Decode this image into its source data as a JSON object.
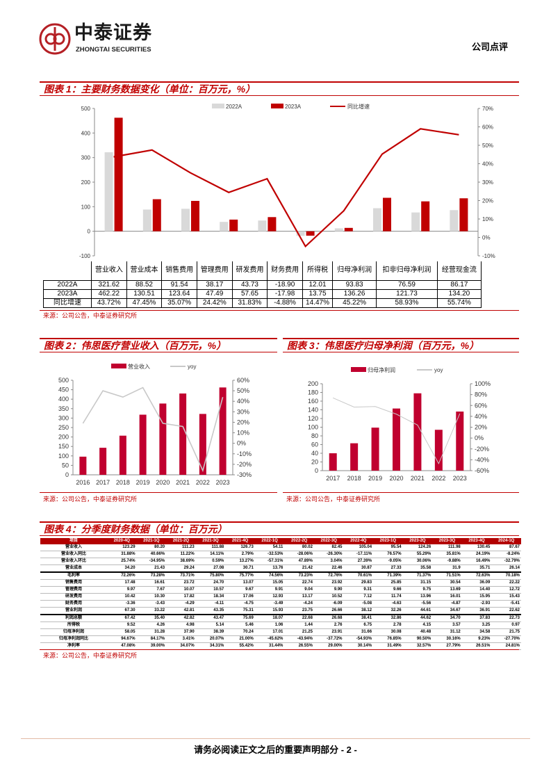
{
  "header": {
    "logo_cn": "中泰证券",
    "logo_en": "ZHONGTAI SECURITIES",
    "doc_type": "公司点评"
  },
  "fig1": {
    "title": "图表 1：主要财务数据变化（单位：百万元，%）",
    "source": "来源：公司公告，中泰证券研究所",
    "chart_data": {
      "type": "bar",
      "categories": [
        "营业收入",
        "营业成本",
        "销售费用",
        "管理费用",
        "研发费用",
        "财务费用",
        "所得税",
        "归母净利润",
        "扣非归母净利润",
        "经营现金流"
      ],
      "series": [
        {
          "name": "2022A",
          "values": [
            321.62,
            88.52,
            91.54,
            38.17,
            43.73,
            -18.9,
            12.01,
            93.83,
            76.59,
            86.17
          ],
          "color": "#d9d9d9"
        },
        {
          "name": "2023A",
          "values": [
            462.22,
            130.51,
            123.64,
            47.49,
            57.65,
            -17.98,
            13.75,
            136.26,
            121.73,
            134.2
          ],
          "color": "#c00000"
        },
        {
          "name": "同比增速",
          "type": "line",
          "axis": "right",
          "values": [
            43.72,
            47.45,
            35.07,
            24.42,
            31.83,
            -4.88,
            14.47,
            45.22,
            58.93,
            55.74
          ],
          "color": "#c00000"
        }
      ],
      "ylim": [
        -100,
        500
      ],
      "yticks": [
        "500",
        "400",
        "300",
        "200",
        "100",
        "0",
        "-100"
      ],
      "y2lim": [
        -10,
        70
      ],
      "y2ticks": [
        "70%",
        "60%",
        "50%",
        "40%",
        "30%",
        "20%",
        "10%",
        "0%",
        "-10%"
      ]
    },
    "table": {
      "headers": [
        "营业收入",
        "营业成本",
        "销售费用",
        "管理费用",
        "研发费用",
        "财务费用",
        "所得税",
        "归母净利润",
        "扣非归母净利润",
        "经营现金流"
      ],
      "rows": [
        {
          "label": "2022A",
          "cells": [
            "321.62",
            "88.52",
            "91.54",
            "38.17",
            "43.73",
            "-18.90",
            "12.01",
            "93.83",
            "76.59",
            "86.17"
          ]
        },
        {
          "label": "2023A",
          "cells": [
            "462.22",
            "130.51",
            "123.64",
            "47.49",
            "57.65",
            "-17.98",
            "13.75",
            "136.26",
            "121.73",
            "134.20"
          ]
        },
        {
          "label": "同比增速",
          "cells": [
            "43.72%",
            "47.45%",
            "35.07%",
            "24.42%",
            "31.83%",
            "-4.88%",
            "14.47%",
            "45.22%",
            "58.93%",
            "55.74%"
          ]
        }
      ]
    }
  },
  "fig2": {
    "title": "图表 2：伟思医疗营业收入（百万元，%）",
    "source": "来源：公司公告，中泰证券研究所",
    "chart_data": {
      "type": "bar",
      "categories": [
        "2016",
        "2017",
        "2018",
        "2019",
        "2020",
        "2021",
        "2022",
        "2023"
      ],
      "series": [
        {
          "name": "营业收入",
          "values": [
            96,
            143,
            207,
            318,
            377,
            430,
            322,
            462
          ],
          "color": "#c0002f"
        },
        {
          "name": "yoy",
          "type": "line",
          "axis": "right",
          "values": [
            19,
            50,
            44,
            53,
            19,
            16,
            -26,
            44
          ],
          "color": "#c8c8c8"
        }
      ],
      "ylim": [
        0,
        500
      ],
      "yticks": [
        "500",
        "450",
        "400",
        "350",
        "300",
        "250",
        "200",
        "150",
        "100",
        "50",
        "0"
      ],
      "y2lim": [
        -30,
        60
      ],
      "y2ticks": [
        "60%",
        "50%",
        "40%",
        "30%",
        "20%",
        "10%",
        "0%",
        "-10%",
        "-20%",
        "-30%"
      ]
    }
  },
  "fig3": {
    "title": "图表 3：伟思医疗归母净利润（百万元，%）",
    "source": "来源：公司公告，中泰证券研究所",
    "chart_data": {
      "type": "bar",
      "categories": [
        "2017",
        "2018",
        "2019",
        "2020",
        "2021",
        "2022",
        "2023"
      ],
      "series": [
        {
          "name": "归母净利润",
          "values": [
            40,
            63,
            99,
            143,
            178,
            94,
            136
          ],
          "color": "#c0002f"
        },
        {
          "name": "yoy",
          "type": "line",
          "axis": "right",
          "values": [
            74,
            57,
            58,
            44,
            24,
            -47,
            45
          ],
          "color": "#c8c8c8"
        }
      ],
      "ylim": [
        0,
        200
      ],
      "yticks": [
        "200",
        "180",
        "160",
        "140",
        "120",
        "100",
        "80",
        "60",
        "40",
        "20",
        "0"
      ],
      "y2lim": [
        -60,
        100
      ],
      "y2ticks": [
        "100%",
        "80%",
        "60%",
        "40%",
        "20%",
        "0%",
        "-20%",
        "-40%",
        "-60%"
      ]
    }
  },
  "fig4": {
    "title": "图表 4：分季度财务数据（单位：百万元）",
    "source": "来源：公司公告，中泰证券研究所",
    "headers": [
      "项目",
      "2020-4Q",
      "2021-1Q",
      "2021-2Q",
      "2021-3Q",
      "2021-4Q",
      "2022-1Q",
      "2022-2Q",
      "2022-3Q",
      "2022-4Q",
      "2023-1Q",
      "2023-2Q",
      "2023-3Q",
      "2023-4Q",
      "2024-1Q"
    ],
    "rows": [
      {
        "label": "营业收入",
        "cells": [
          "123.29",
          "80.20",
          "111.23",
          "111.88",
          "126.73",
          "54.11",
          "80.02",
          "82.45",
          "105.04",
          "95.54",
          "124.26",
          "111.98",
          "130.45",
          "87.67"
        ]
      },
      {
        "label": "营业收入同比",
        "cells": [
          "31.88%",
          "40.66%",
          "11.22%",
          "14.11%",
          "2.79%",
          "-32.53%",
          "-28.06%",
          "-26.30%",
          "-17.11%",
          "76.57%",
          "55.29%",
          "35.81%",
          "24.19%",
          "-8.24%"
        ]
      },
      {
        "label": "营业收入环比",
        "cells": [
          "25.74%",
          "-34.95%",
          "38.69%",
          "0.59%",
          "13.27%",
          "-57.31%",
          "47.89%",
          "3.04%",
          "27.39%",
          "-9.05%",
          "30.06%",
          "-9.88%",
          "16.49%",
          "-32.79%"
        ]
      },
      {
        "label": "营业成本",
        "cells": [
          "34.20",
          "21.43",
          "29.24",
          "27.08",
          "30.71",
          "13.76",
          "21.42",
          "22.46",
          "30.87",
          "27.33",
          "35.58",
          "31.9",
          "35.71",
          "26.14"
        ]
      },
      {
        "label": "毛利率",
        "cells": [
          "72.26%",
          "73.28%",
          "73.71%",
          "75.80%",
          "75.77%",
          "74.56%",
          "73.23%",
          "72.76%",
          "70.61%",
          "71.39%",
          "71.37%",
          "71.51%",
          "72.63%",
          "70.18%"
        ]
      },
      {
        "label": "销售费用",
        "cells": [
          "17.48",
          "16.61",
          "23.72",
          "24.70",
          "13.07",
          "15.05",
          "22.74",
          "23.92",
          "29.83",
          "25.85",
          "31.15",
          "30.54",
          "36.09",
          "22.22"
        ]
      },
      {
        "label": "管理费用",
        "cells": [
          "9.97",
          "7.67",
          "10.07",
          "10.57",
          "9.67",
          "9.91",
          "9.04",
          "9.90",
          "9.31",
          "9.66",
          "9.75",
          "13.69",
          "14.40",
          "12.72"
        ]
      },
      {
        "label": "研发费用",
        "cells": [
          "10.42",
          "10.30",
          "17.82",
          "18.34",
          "17.06",
          "12.93",
          "13.17",
          "10.52",
          "7.12",
          "11.74",
          "13.96",
          "16.01",
          "15.95",
          "15.43"
        ]
      },
      {
        "label": "财务费用",
        "cells": [
          "-3.36",
          "-3.43",
          "-4.29",
          "-4.11",
          "-4.75",
          "-3.49",
          "-4.24",
          "-6.09",
          "-5.08",
          "-4.63",
          "-5.56",
          "-4.87",
          "-2.93",
          "-5.41"
        ]
      },
      {
        "label": "营业利润",
        "cells": [
          "67.30",
          "33.22",
          "42.81",
          "43.35",
          "75.31",
          "15.93",
          "23.75",
          "26.66",
          "38.12",
          "32.26",
          "44.61",
          "34.67",
          "36.91",
          "22.62"
        ]
      },
      {
        "label": "利润总额",
        "cells": [
          "67.42",
          "35.40",
          "42.82",
          "43.47",
          "75.69",
          "18.07",
          "22.68",
          "26.68",
          "38.41",
          "32.86",
          "44.62",
          "34.70",
          "37.83",
          "22.73"
        ]
      },
      {
        "label": "所得税",
        "cells": [
          "9.52",
          "4.26",
          "4.98",
          "5.14",
          "5.46",
          "1.06",
          "1.44",
          "2.76",
          "6.75",
          "2.78",
          "4.15",
          "3.57",
          "3.25",
          "0.97"
        ]
      },
      {
        "label": "归母净利润",
        "cells": [
          "58.05",
          "31.28",
          "37.90",
          "38.39",
          "70.24",
          "17.01",
          "21.25",
          "23.91",
          "31.66",
          "30.08",
          "40.48",
          "31.12",
          "34.58",
          "21.75"
        ]
      },
      {
        "label": "归母净利润同比",
        "cells": [
          "94.67%",
          "84.17%",
          "3.41%",
          "20.07%",
          "21.00%",
          "-45.62%",
          "-43.94%",
          "-37.72%",
          "-54.93%",
          "76.85%",
          "90.50%",
          "30.16%",
          "9.23%",
          "-27.70%"
        ]
      },
      {
        "label": "净利率",
        "cells": [
          "47.08%",
          "39.00%",
          "34.07%",
          "34.31%",
          "55.42%",
          "31.44%",
          "26.55%",
          "29.00%",
          "30.14%",
          "31.49%",
          "32.57%",
          "27.79%",
          "26.51%",
          "24.81%"
        ]
      }
    ]
  },
  "footer": {
    "text": "请务必阅读正文之后的重要声明部分 - 2 -"
  }
}
